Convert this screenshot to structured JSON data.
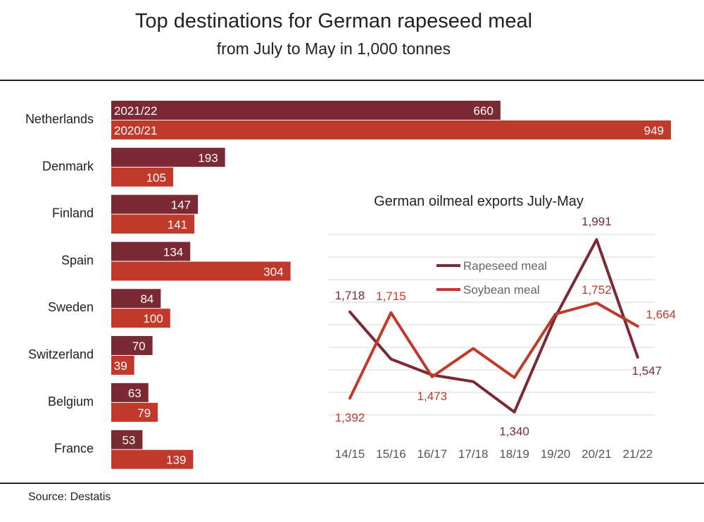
{
  "title": "Top destinations for German rapeseed meal",
  "subtitle": "from July to May in 1,000 tonnes",
  "source": "Source: Destatis",
  "colors": {
    "dark": "#7b2a33",
    "light": "#c0392b"
  },
  "chart_data": [
    {
      "type": "bar",
      "orientation": "horizontal",
      "categories": [
        "Netherlands",
        "Denmark",
        "Finland",
        "Spain",
        "Sweden",
        "Switzerland",
        "Belgium",
        "France"
      ],
      "series": [
        {
          "name": "2021/22",
          "values": [
            660,
            193,
            147,
            134,
            84,
            70,
            63,
            53
          ],
          "labels": [
            "660",
            "193",
            "147",
            "134",
            "84",
            "70",
            "63",
            "53"
          ]
        },
        {
          "name": "2020/21",
          "values": [
            949,
            105,
            141,
            304,
            100,
            39,
            79,
            139
          ],
          "labels": [
            "949",
            "105",
            "141",
            "304",
            "100",
            "39",
            "79",
            "139"
          ]
        }
      ]
    },
    {
      "type": "line",
      "title": "German oilmeal exports July-May",
      "x": [
        "14/15",
        "15/16",
        "16/17",
        "17/18",
        "18/19",
        "19/20",
        "20/21",
        "21/22"
      ],
      "series": [
        {
          "name": "Rapeseed meal",
          "values": [
            1718,
            1540,
            1480,
            1455,
            1340,
            1700,
            1991,
            1547
          ]
        },
        {
          "name": "Soybean meal",
          "values": [
            1392,
            1715,
            1473,
            1580,
            1470,
            1710,
            1752,
            1664
          ]
        }
      ],
      "data_labels": [
        {
          "text": "1,718",
          "series": 0,
          "index": 0
        },
        {
          "text": "1,715",
          "series": 1,
          "index": 1
        },
        {
          "text": "1,392",
          "series": 1,
          "index": 0
        },
        {
          "text": "1,473",
          "series": 1,
          "index": 2
        },
        {
          "text": "1,340",
          "series": 0,
          "index": 4
        },
        {
          "text": "1,991",
          "series": 0,
          "index": 6
        },
        {
          "text": "1,752",
          "series": 1,
          "index": 6
        },
        {
          "text": "1,664",
          "series": 1,
          "index": 7
        },
        {
          "text": "1,547",
          "series": 0,
          "index": 7
        }
      ],
      "ylim": [
        1220,
        2050
      ],
      "grid": true,
      "legend": "top-left"
    }
  ]
}
